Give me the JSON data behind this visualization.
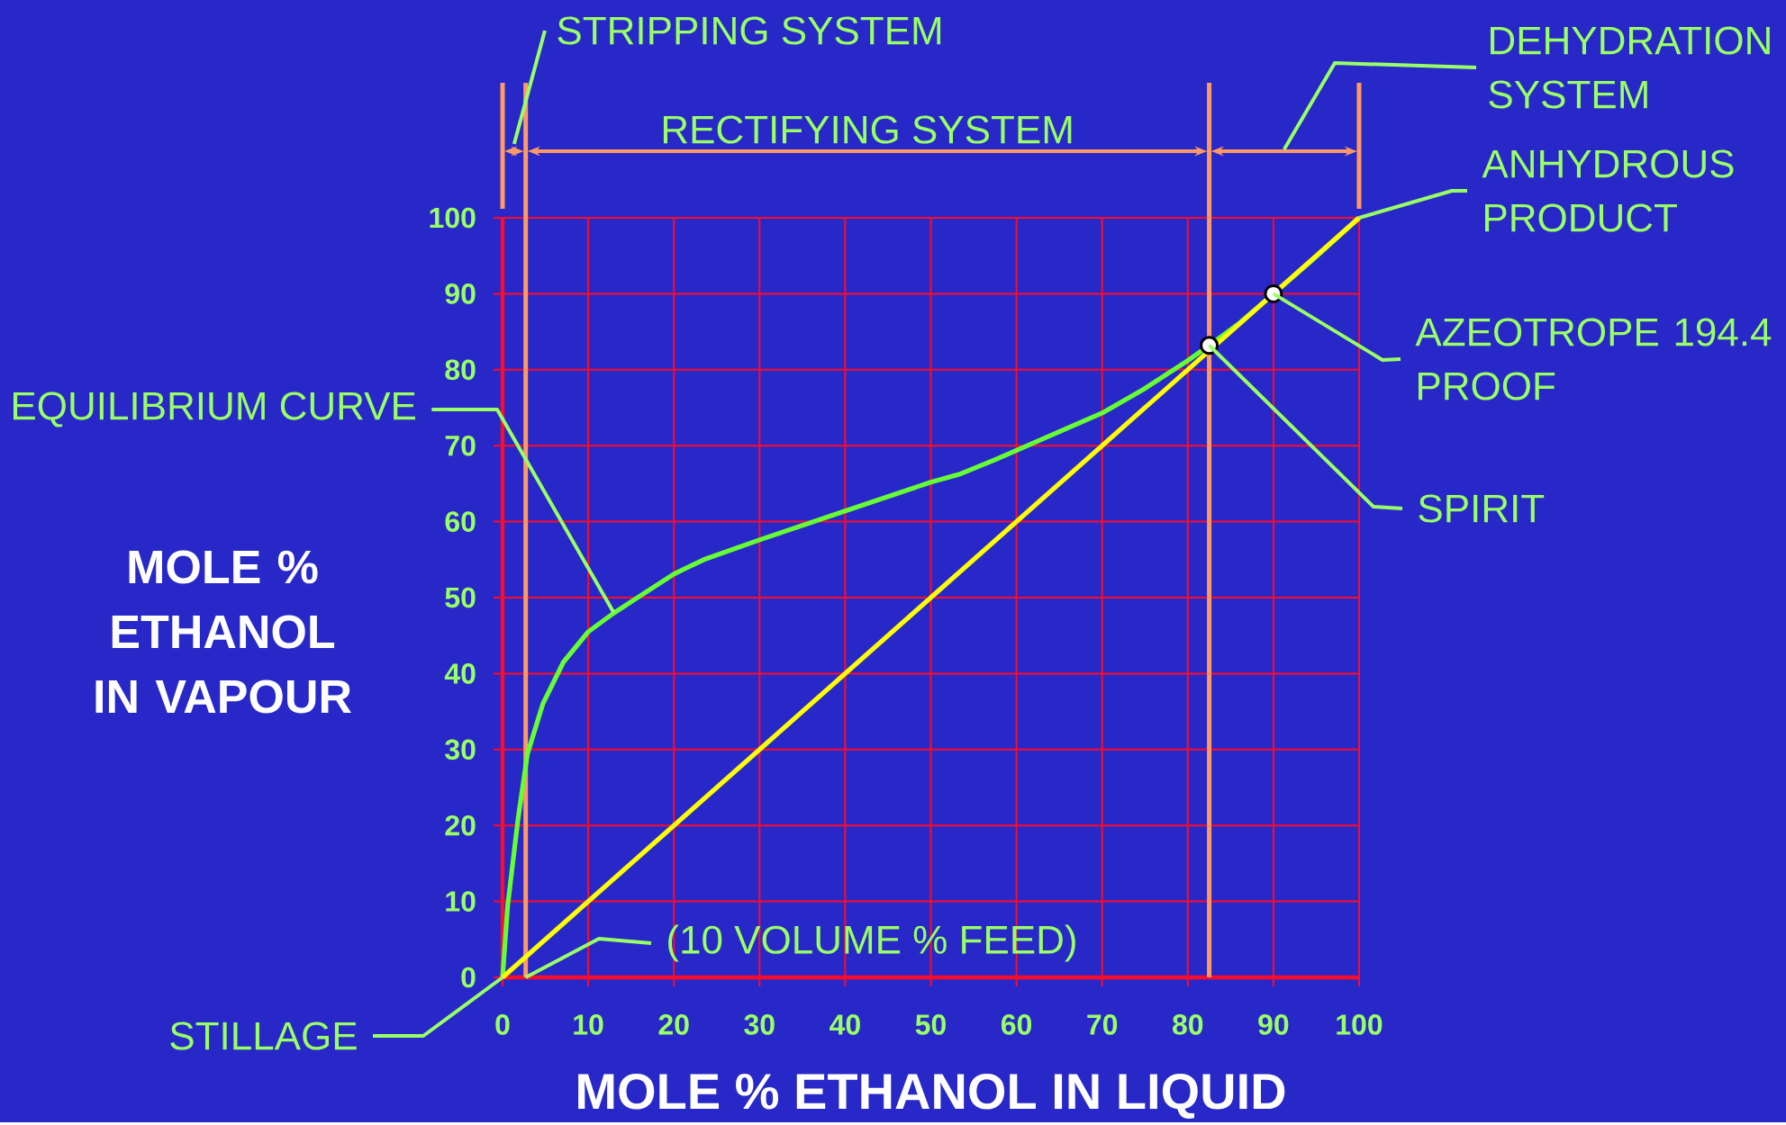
{
  "chart_data": {
    "type": "line",
    "xlabel": "MOLE % ETHANOL IN LIQUID",
    "ylabel": "MOLE % ETHANOL IN VAPOUR",
    "xlim": [
      0,
      100
    ],
    "ylim": [
      0,
      100
    ],
    "xticks": [
      0,
      10,
      20,
      30,
      40,
      50,
      60,
      70,
      80,
      90,
      100
    ],
    "yticks": [
      0,
      10,
      20,
      30,
      40,
      50,
      60,
      70,
      80,
      90,
      100
    ],
    "grid": true,
    "series": [
      {
        "color": "#66ff33",
        "x": [
          0,
          0.6,
          1.8,
          2.9,
          4.7,
          7.1,
          10,
          12.9,
          15.9,
          20,
          23.5,
          30,
          40,
          50,
          53.5,
          57.6,
          63.5,
          70,
          74.8,
          80,
          82.5,
          86.1,
          90,
          94.5,
          100
        ],
        "values": [
          0,
          9.5,
          20.8,
          29.4,
          36,
          41.5,
          45.5,
          47.9,
          50.1,
          53.1,
          55,
          57.6,
          61.4,
          65.2,
          66.3,
          68.2,
          71.1,
          74.3,
          77.4,
          81.2,
          83.2,
          86.2,
          90,
          94.4,
          100
        ]
      },
      {
        "color": "#ffff00",
        "x": [
          0,
          100
        ],
        "values": [
          0,
          100
        ]
      },
      {
        "type": "scatter",
        "color": "#ffffff",
        "marker": "circle",
        "x": [
          82.5,
          90
        ],
        "values": [
          83.2,
          90
        ]
      }
    ],
    "ref_lines": [
      {
        "axis": "x",
        "value": 2.7,
        "color": "#ff9966"
      },
      {
        "axis": "x",
        "value": 82.5,
        "color": "#ff9966"
      }
    ],
    "annotations": [
      {
        "text": "EQUILIBRIUM CURVE",
        "x": 13,
        "y": 48
      },
      {
        "text": "(10 VOLUME % FEED)",
        "x": 2.7,
        "y": 0
      },
      {
        "text": "STILLAGE",
        "x": 0,
        "y": 0
      },
      {
        "text": "ANHYDROUS PRODUCT",
        "x": 100,
        "y": 100
      },
      {
        "text": "AZEOTROPE 194.4 PROOF",
        "x": 90,
        "y": 90
      },
      {
        "text": "SPIRIT",
        "x": 82.5,
        "y": 83.2
      },
      "STRIPPING SYSTEM",
      "RECTIFYING SYSTEM",
      "DEHYDRATION SYSTEM"
    ]
  }
}
